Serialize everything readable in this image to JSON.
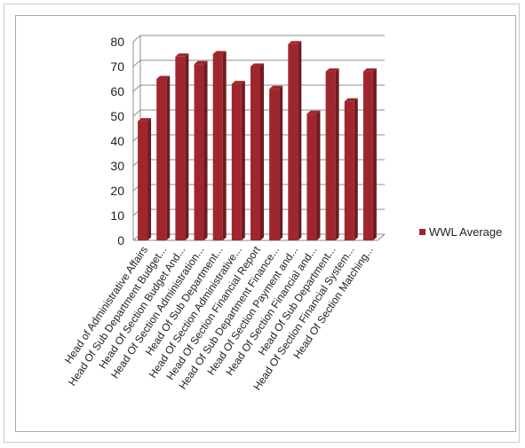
{
  "chart_data": {
    "type": "bar",
    "categories": [
      "Head of Administrative Affairs",
      "Head Of Sub Department Budget...",
      "Head Of Section Budget And...",
      "Head Of Section Administration...",
      "Head Of Sub Department...",
      "Head Of Section Administrative...",
      "Head Of Section Financial Report",
      "Head Of Sub Department Finance...",
      "Head Of Section Payment and...",
      "Head Of Section Financial and...",
      "Head Of Sub Department...",
      "Head Of Section Financial System...",
      "Head Of Section Matching..."
    ],
    "series": [
      {
        "name": "WWL Average",
        "values": [
          48,
          65,
          74,
          71,
          75,
          63,
          70,
          61,
          79,
          51,
          68,
          56,
          68
        ],
        "color": "#a0262e"
      }
    ],
    "yticks": [
      0,
      10,
      20,
      30,
      40,
      50,
      60,
      70,
      80
    ],
    "ylim": [
      0,
      80
    ],
    "title": "",
    "xlabel": "",
    "ylabel": "",
    "legend_position": "right",
    "style": "3d-bar",
    "grid": "horizontal"
  }
}
